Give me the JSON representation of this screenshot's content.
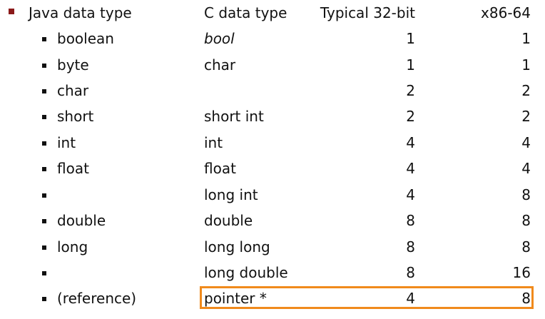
{
  "header": {
    "java": "Java data type",
    "c": "C data type",
    "typical32": "Typical 32-bit",
    "x8664": "x86-64"
  },
  "rows": [
    {
      "java": "boolean",
      "c": "bool",
      "typical32": "1",
      "x8664": "1"
    },
    {
      "java": "byte",
      "c": "char",
      "typical32": "1",
      "x8664": "1"
    },
    {
      "java": "char",
      "c": "",
      "typical32": "2",
      "x8664": "2"
    },
    {
      "java": "short",
      "c": "short int",
      "typical32": "2",
      "x8664": "2"
    },
    {
      "java": "int",
      "c": "int",
      "typical32": "4",
      "x8664": "4"
    },
    {
      "java": "float",
      "c": "float",
      "typical32": "4",
      "x8664": "4"
    },
    {
      "java": "",
      "c": "long int",
      "typical32": "4",
      "x8664": "8"
    },
    {
      "java": "double",
      "c": "double",
      "typical32": "8",
      "x8664": "8"
    },
    {
      "java": "long",
      "c": "long long",
      "typical32": "8",
      "x8664": "8"
    },
    {
      "java": "",
      "c": "long double",
      "typical32": "8",
      "x8664": "16"
    },
    {
      "java": "(reference)",
      "c": "pointer *",
      "typical32": "4",
      "x8664": "8"
    }
  ],
  "colors": {
    "header_bullet": "#8b1a1a",
    "highlight_border": "#f08a1c"
  }
}
